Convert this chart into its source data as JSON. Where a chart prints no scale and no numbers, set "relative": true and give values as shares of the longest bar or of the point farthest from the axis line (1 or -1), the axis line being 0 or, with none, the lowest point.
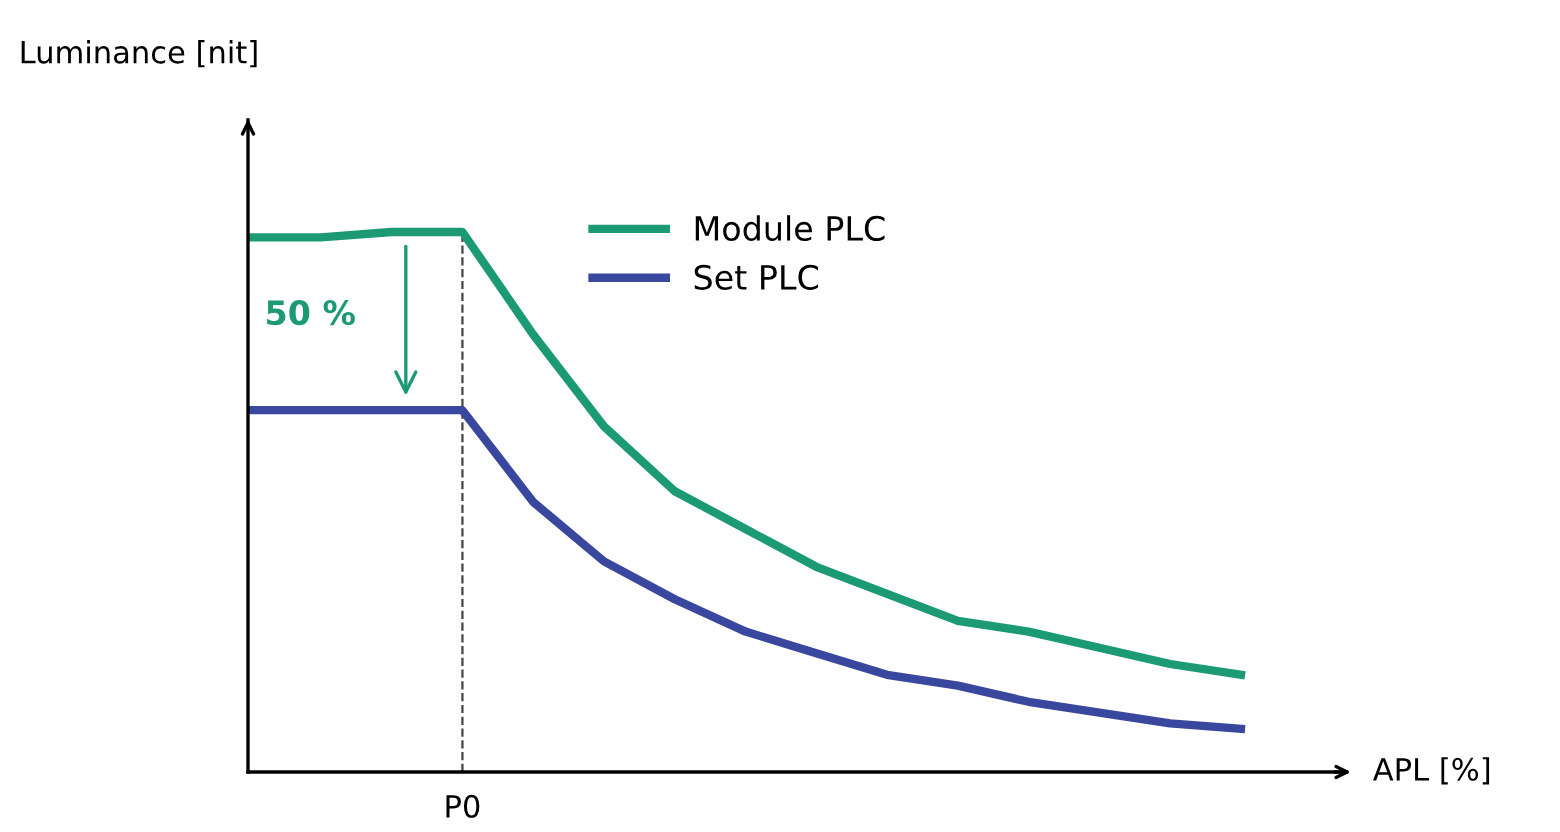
{
  "chart_data": {
    "type": "line",
    "relative": true,
    "xlabel": "APL [%]",
    "categories": [
      null,
      null,
      null,
      null,
      null,
      null,
      null,
      null,
      null,
      null,
      null,
      null,
      null,
      null,
      null
    ],
    "series": [
      {
        "name": "Module PLC",
        "color": "#1b9a74",
        "values": [
          0.99,
          0.99,
          1.0,
          1.0,
          0.81,
          0.64,
          0.52,
          0.45,
          0.38,
          0.33,
          0.28,
          0.26,
          0.23,
          0.2,
          0.18
        ]
      },
      {
        "name": "Set PLC",
        "color": "#3a479e",
        "values": [
          0.67,
          0.67,
          0.67,
          0.67,
          0.5,
          0.39,
          0.32,
          0.26,
          0.22,
          0.18,
          0.16,
          0.13,
          0.11,
          0.09,
          0.08
        ]
      }
    ],
    "annotations": [
      "Luminance [nit]",
      "50 %",
      "P0"
    ],
    "legend": "top",
    "marker": "none",
    "line_style": "solid"
  }
}
